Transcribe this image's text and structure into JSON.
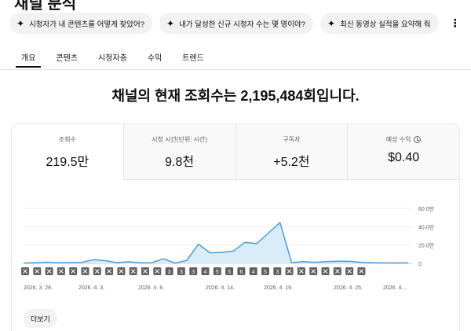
{
  "page": {
    "title": "채널 분석"
  },
  "suggestions": [
    {
      "label": "시청자가 내 콘텐츠를 어떻게 찾았어?"
    },
    {
      "label": "내가 달성한 신규 시청자 수는 몇 명이야?"
    },
    {
      "label": "최신 동영상 실적을 요약해 줘"
    }
  ],
  "tabs": [
    {
      "label": "개요",
      "active": true
    },
    {
      "label": "콘텐츠"
    },
    {
      "label": "시청자층"
    },
    {
      "label": "수익"
    },
    {
      "label": "트렌드"
    }
  ],
  "headline": "채널의 현재 조회수는 2,195,484회입니다.",
  "metrics": [
    {
      "label": "조회수",
      "value": "219.5만"
    },
    {
      "label": "시청 시간(단위: 시간)",
      "value": "9.8천"
    },
    {
      "label": "구독자",
      "value": "+5.2천"
    },
    {
      "label": "예상 수익",
      "value": "$0.40"
    }
  ],
  "chart_data": {
    "type": "area",
    "y_unit": "만",
    "ylim": [
      0,
      60
    ],
    "yticks": [
      "60.0만",
      "40.0만",
      "20.0만",
      "0"
    ],
    "x_labels": [
      "2026. 3. 28.",
      "2026. 4. 3.",
      "2026. 4. 8.",
      "2026. 4. 14.",
      "2026. 4. 19.",
      "2026. 4. 25.",
      "2026. 4...."
    ],
    "series": [
      {
        "values": [
          0.3,
          0.8,
          1.3,
          0.8,
          0.9,
          1.1,
          4.0,
          3.0,
          0.8,
          1.8,
          0.6,
          0.8,
          5.0,
          0.3,
          3.2,
          21.0,
          11.5,
          12.0,
          13.5,
          23.0,
          21.5,
          33.0,
          44.5,
          0.8,
          2.0,
          1.2,
          1.9,
          2.4,
          2.2,
          1.1,
          0.6,
          0.5,
          0.4,
          0.5
        ]
      }
    ],
    "markers": [
      "",
      "",
      "",
      "",
      "",
      "",
      "",
      "",
      "",
      "",
      "",
      "",
      "3",
      "3",
      "3",
      "4",
      "5",
      "5",
      "6",
      "4",
      "5",
      "3",
      "",
      "",
      "",
      "",
      "",
      "",
      ""
    ],
    "color": "#4a9cd6",
    "fill": "#d9ecf9",
    "grid": true
  },
  "more_button": "더보기"
}
